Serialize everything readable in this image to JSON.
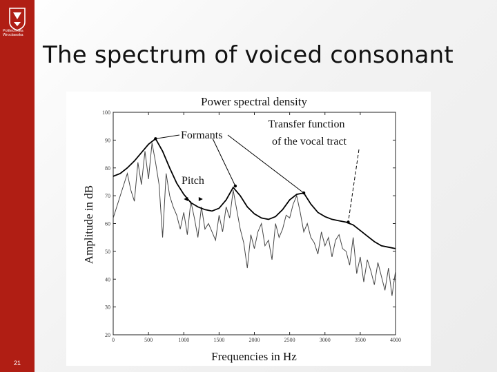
{
  "sidebar": {
    "logo_text": [
      "Politechnika",
      "Wrocławska"
    ],
    "page_number": "21",
    "color": "#b01e14"
  },
  "slide": {
    "title": "The spectrum of voiced consonant"
  },
  "chart_data": {
    "type": "line",
    "title": "Power spectral density",
    "xlabel": "Frequencies in Hz",
    "ylabel": "Amplitude in dB",
    "xlim": [
      0,
      4000
    ],
    "ylim": [
      20,
      100
    ],
    "xticks": [
      0,
      500,
      1000,
      1500,
      2000,
      2500,
      3000,
      3500,
      4000
    ],
    "yticks": [
      20,
      30,
      40,
      50,
      60,
      70,
      80,
      90,
      100
    ],
    "grid": false,
    "series": [
      {
        "name": "Transfer function of the vocal tract",
        "x": [
          0,
          100,
          200,
          300,
          400,
          500,
          600,
          700,
          800,
          900,
          1000,
          1100,
          1200,
          1300,
          1400,
          1500,
          1600,
          1700,
          1800,
          1900,
          2000,
          2100,
          2200,
          2300,
          2400,
          2500,
          2600,
          2700,
          2800,
          2900,
          3000,
          3100,
          3200,
          3300,
          3400,
          3500,
          3600,
          3700,
          3800,
          3900,
          4000
        ],
        "y": [
          77,
          78,
          80,
          82.5,
          85.5,
          88.5,
          90.5,
          86,
          80,
          74.5,
          70.5,
          67.5,
          66,
          65,
          64.5,
          65.5,
          68.5,
          73,
          70,
          66,
          63.5,
          62,
          61.5,
          62.5,
          65,
          68.5,
          70.5,
          71,
          67,
          64,
          62.5,
          61.5,
          61,
          60.5,
          59.5,
          57.5,
          55.5,
          53.5,
          52,
          51.5,
          51
        ]
      },
      {
        "name": "Power spectral density",
        "x": [
          0,
          50,
          100,
          150,
          200,
          250,
          300,
          350,
          400,
          450,
          500,
          550,
          600,
          650,
          700,
          750,
          800,
          850,
          900,
          950,
          1000,
          1050,
          1100,
          1150,
          1200,
          1250,
          1300,
          1350,
          1400,
          1450,
          1500,
          1550,
          1600,
          1650,
          1700,
          1750,
          1800,
          1850,
          1900,
          1950,
          2000,
          2050,
          2100,
          2150,
          2200,
          2250,
          2300,
          2350,
          2400,
          2450,
          2500,
          2550,
          2600,
          2650,
          2700,
          2750,
          2800,
          2850,
          2900,
          2950,
          3000,
          3050,
          3100,
          3150,
          3200,
          3250,
          3300,
          3350,
          3400,
          3450,
          3500,
          3550,
          3600,
          3650,
          3700,
          3750,
          3800,
          3850,
          3900,
          3950,
          4000
        ],
        "y": [
          62,
          66,
          70,
          74,
          78,
          72,
          68,
          82,
          74,
          86,
          76,
          89,
          82,
          74,
          55,
          78,
          70,
          66,
          63,
          58,
          64,
          56,
          68,
          62,
          55,
          66,
          58,
          60,
          57,
          54,
          63,
          57,
          66,
          62,
          72,
          65,
          58,
          53,
          44,
          56,
          51,
          57,
          60,
          52,
          54,
          47,
          60,
          55,
          58,
          63,
          62,
          67,
          70,
          64,
          57,
          60,
          55,
          53,
          49,
          57,
          52,
          55,
          48,
          54,
          56,
          51,
          50,
          45,
          55,
          42,
          48,
          39,
          47,
          43,
          38,
          46,
          41,
          36,
          44,
          34,
          43
        ]
      }
    ],
    "annotations": {
      "formants": "Formants",
      "transfer_line1": "Transfer function",
      "transfer_line2": "of the vocal tract",
      "pitch": "Pitch",
      "formant_points": [
        {
          "x": 600,
          "y": 90.5
        },
        {
          "x": 1730,
          "y": 73.5
        },
        {
          "x": 2700,
          "y": 71
        },
        {
          "x": 3330,
          "y": 60.5
        }
      ],
      "pitch_arrow_x": [
        1000,
        1270
      ]
    }
  }
}
